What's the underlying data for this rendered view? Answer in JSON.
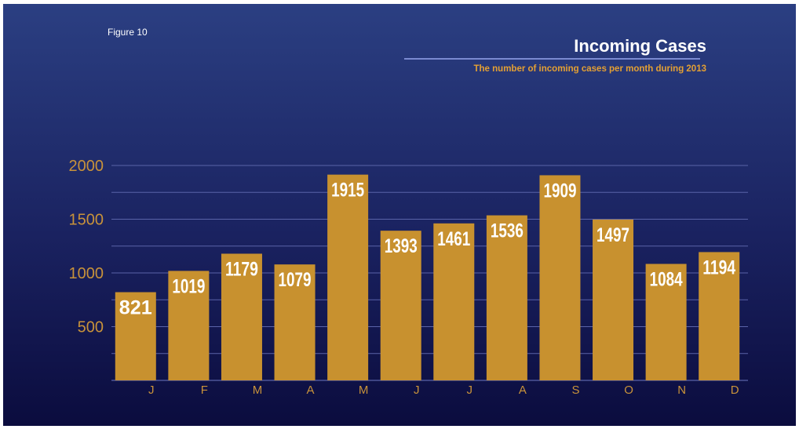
{
  "figure_label": "Figure 10",
  "title": "Incoming Cases",
  "subtitle": "The number of incoming cases per month during 2013",
  "colors": {
    "background_top": "#2b3f82",
    "background_bottom": "#0b0c3e",
    "bar": "#c8912f",
    "axis_text": "#c8923a",
    "subtitle": "#e4a033",
    "gridline": "#5a63a8"
  },
  "chart_data": {
    "type": "bar",
    "title": "Incoming Cases",
    "subtitle": "The number of incoming cases per month during 2013",
    "xlabel": "",
    "ylabel": "",
    "categories": [
      "J",
      "F",
      "M",
      "A",
      "M",
      "J",
      "J",
      "A",
      "S",
      "O",
      "N",
      "D"
    ],
    "values": [
      821,
      1019,
      1179,
      1079,
      1915,
      1393,
      1461,
      1536,
      1909,
      1497,
      1084,
      1194
    ],
    "yticks": [
      500,
      1000,
      1500,
      2000
    ],
    "ylim": [
      0,
      2000
    ],
    "grid": true,
    "legend": "none",
    "data_labels": true
  }
}
